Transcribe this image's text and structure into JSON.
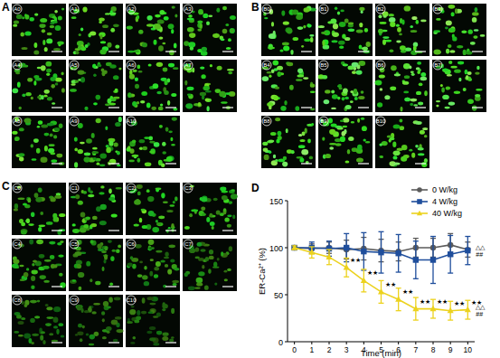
{
  "panels": [
    {
      "label": "A",
      "tiles": [
        "A0",
        "A1",
        "A2",
        "A3",
        "A4",
        "A5",
        "A6",
        "A7",
        "A8",
        "A9",
        "A10"
      ]
    },
    {
      "label": "B",
      "tiles": [
        "B0",
        "B1",
        "B2",
        "B3",
        "B4",
        "B5",
        "B6",
        "B7",
        "B8",
        "B9",
        "B10"
      ]
    },
    {
      "label": "C",
      "tiles": [
        "C0",
        "C1",
        "C2",
        "C3",
        "C4",
        "C5",
        "C6",
        "C7",
        "C8",
        "C9",
        "C10"
      ]
    }
  ],
  "chart_data": {
    "type": "line",
    "panel_label": "D",
    "x_label": "Time (min)",
    "y_label": "ER-Ca²⁺ (%)",
    "x": [
      0,
      1,
      2,
      3,
      4,
      5,
      6,
      7,
      8,
      9,
      10
    ],
    "xlim": [
      -0.4,
      10.4
    ],
    "xticks": [
      0,
      1,
      2,
      3,
      4,
      5,
      6,
      7,
      8,
      9,
      10
    ],
    "ylim": [
      0,
      150
    ],
    "yticks": [
      0,
      50,
      100,
      150
    ],
    "legend": "top-right",
    "series": [
      {
        "name": "0 W/kg",
        "color": "#5b5b5b",
        "marker": "circle",
        "values": [
          100,
          99,
          100,
          98,
          99,
          97,
          96,
          100,
          100,
          103,
          98
        ],
        "errors": [
          2,
          5,
          6,
          10,
          12,
          12,
          10,
          10,
          10,
          12,
          8
        ]
      },
      {
        "name": "4 W/kg",
        "color": "#1f4e9c",
        "marker": "square",
        "values": [
          100,
          100,
          99,
          100,
          96,
          95,
          94,
          87,
          87,
          93,
          97
        ],
        "errors": [
          2,
          6,
          8,
          15,
          20,
          22,
          20,
          20,
          25,
          20,
          15
        ],
        "end_labels": [
          "△△",
          "##"
        ]
      },
      {
        "name": "40 W/kg",
        "color": "#ecd21e",
        "marker": "triangle",
        "values": [
          100,
          95,
          90,
          79,
          65,
          53,
          45,
          35,
          35,
          33,
          34
        ],
        "errors": [
          2,
          6,
          8,
          10,
          12,
          12,
          12,
          12,
          10,
          10,
          10
        ],
        "point_labels": [
          null,
          null,
          null,
          "★★",
          "★★",
          "★★",
          "★★",
          "★★",
          "★★",
          "★★",
          "★★"
        ],
        "end_labels": [
          "△△",
          "##"
        ]
      }
    ]
  }
}
